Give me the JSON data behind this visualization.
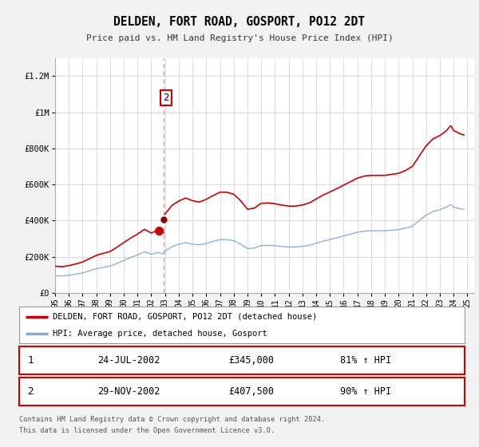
{
  "title": "DELDEN, FORT ROAD, GOSPORT, PO12 2DT",
  "subtitle": "Price paid vs. HM Land Registry's House Price Index (HPI)",
  "background_color": "#f2f2f2",
  "plot_bg_color": "#ffffff",
  "ylim": [
    0,
    1300000
  ],
  "xlim_start": 1995.0,
  "xlim_end": 2025.5,
  "yticks": [
    0,
    200000,
    400000,
    600000,
    800000,
    1000000,
    1200000
  ],
  "ytick_labels": [
    "£0",
    "£200K",
    "£400K",
    "£600K",
    "£800K",
    "£1M",
    "£1.2M"
  ],
  "xticks": [
    1995,
    1996,
    1997,
    1998,
    1999,
    2000,
    2001,
    2002,
    2003,
    2004,
    2005,
    2006,
    2007,
    2008,
    2009,
    2010,
    2011,
    2012,
    2013,
    2014,
    2015,
    2016,
    2017,
    2018,
    2019,
    2020,
    2021,
    2022,
    2023,
    2024,
    2025
  ],
  "red_line_color": "#cc0000",
  "blue_line_color": "#7aaddd",
  "dashed_line_color": "#ff8888",
  "transaction1_date": 2002.55,
  "transaction1_price": 345000,
  "transaction2_date": 2002.92,
  "transaction2_price": 407500,
  "legend_red_label": "DELDEN, FORT ROAD, GOSPORT, PO12 2DT (detached house)",
  "legend_blue_label": "HPI: Average price, detached house, Gosport",
  "footer_line1": "Contains HM Land Registry data © Crown copyright and database right 2024.",
  "footer_line2": "This data is licensed under the Open Government Licence v3.0.",
  "t1_date_str": "24-JUL-2002",
  "t1_price_str": "£345,000",
  "t1_pct_str": "81% ↑ HPI",
  "t2_date_str": "29-NOV-2002",
  "t2_price_str": "£407,500",
  "t2_pct_str": "90% ↑ HPI"
}
